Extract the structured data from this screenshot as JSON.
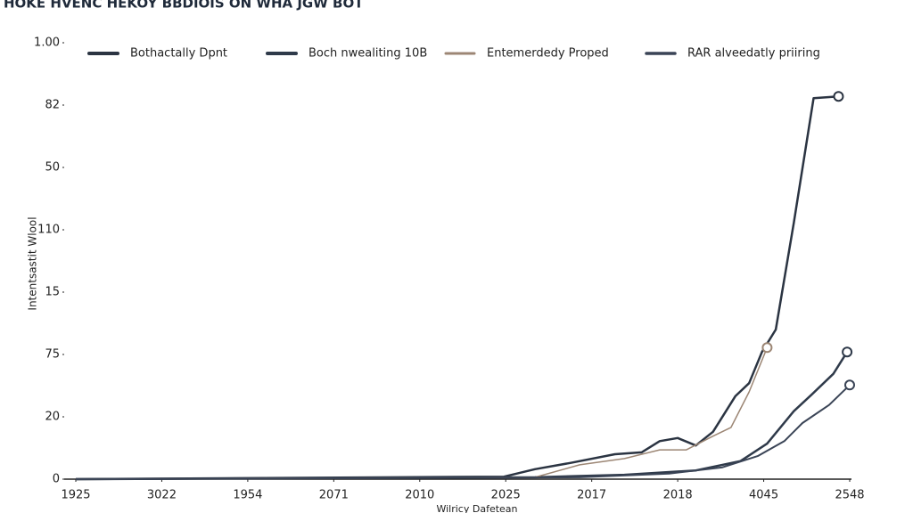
{
  "chart_data": {
    "type": "line",
    "title": "HOKE HVENC HEKOY BBDIOIS ON WHA JGW BOT",
    "y_label": "Intentsastit Wlool",
    "x_label": "Wilricy Dafetean",
    "xlim": [
      0,
      9
    ],
    "xticks": [
      {
        "value": 0,
        "label": "1925"
      },
      {
        "value": 1,
        "label": "3022"
      },
      {
        "value": 2,
        "label": "1954"
      },
      {
        "value": 3,
        "label": "2071"
      },
      {
        "value": 4,
        "label": "2010"
      },
      {
        "value": 5,
        "label": "2025"
      },
      {
        "value": 6,
        "label": "2017"
      },
      {
        "value": 7,
        "label": "2018"
      },
      {
        "value": 8,
        "label": "4045"
      },
      {
        "value": 9,
        "label": "2548"
      }
    ],
    "ylim": [
      0,
      7
    ],
    "yticks": [
      0,
      {
        "value": 1,
        "label": "20"
      },
      {
        "value": 2,
        "label": "75"
      },
      {
        "value": 3,
        "label": "15"
      },
      {
        "value": 4,
        "label": "110"
      },
      {
        "value": 5,
        "label": "50"
      },
      {
        "value": 6,
        "label": "82"
      },
      {
        "value": 7,
        "label": "1.00"
      }
    ],
    "series": [
      {
        "name": "Bothactally Dpnt",
        "color": "#2b3442",
        "width": 2.5,
        "x": [
          0,
          4.98,
          5.34,
          5.75,
          6.27,
          6.58,
          6.79,
          7.0,
          7.21,
          7.41,
          7.67,
          7.83,
          7.98,
          8.14,
          8.35,
          8.58,
          8.87
        ],
        "values": [
          0,
          0.04,
          0.16,
          0.26,
          0.4,
          0.43,
          0.61,
          0.66,
          0.54,
          0.76,
          1.33,
          1.54,
          2.04,
          2.4,
          4.11,
          6.11,
          6.14
        ]
      },
      {
        "name": "Boch nwealiting 10B",
        "color": "#2f3a4a",
        "width": 2.5,
        "x": [
          0,
          5.34,
          6.38,
          7.21,
          7.73,
          8.04,
          8.35,
          8.56,
          8.81,
          8.97
        ],
        "values": [
          0,
          0.03,
          0.07,
          0.14,
          0.29,
          0.57,
          1.09,
          1.36,
          1.69,
          2.04
        ]
      },
      {
        "name": "Entemerdedy Proped",
        "color": "#9c8674",
        "width": 1.5,
        "x": [
          0,
          5.34,
          5.86,
          6.38,
          6.79,
          7.1,
          7.41,
          7.62,
          7.83,
          8.04
        ],
        "values": [
          0,
          0.03,
          0.23,
          0.33,
          0.47,
          0.47,
          0.69,
          0.83,
          1.4,
          2.11
        ]
      },
      {
        "name": "RAR alveedatly priiring",
        "color": "#3a4456",
        "width": 2,
        "x": [
          0,
          5.86,
          6.9,
          7.52,
          7.93,
          8.24,
          8.45,
          8.76,
          9.0
        ],
        "values": [
          0,
          0.03,
          0.09,
          0.19,
          0.37,
          0.61,
          0.9,
          1.19,
          1.51
        ]
      }
    ]
  }
}
